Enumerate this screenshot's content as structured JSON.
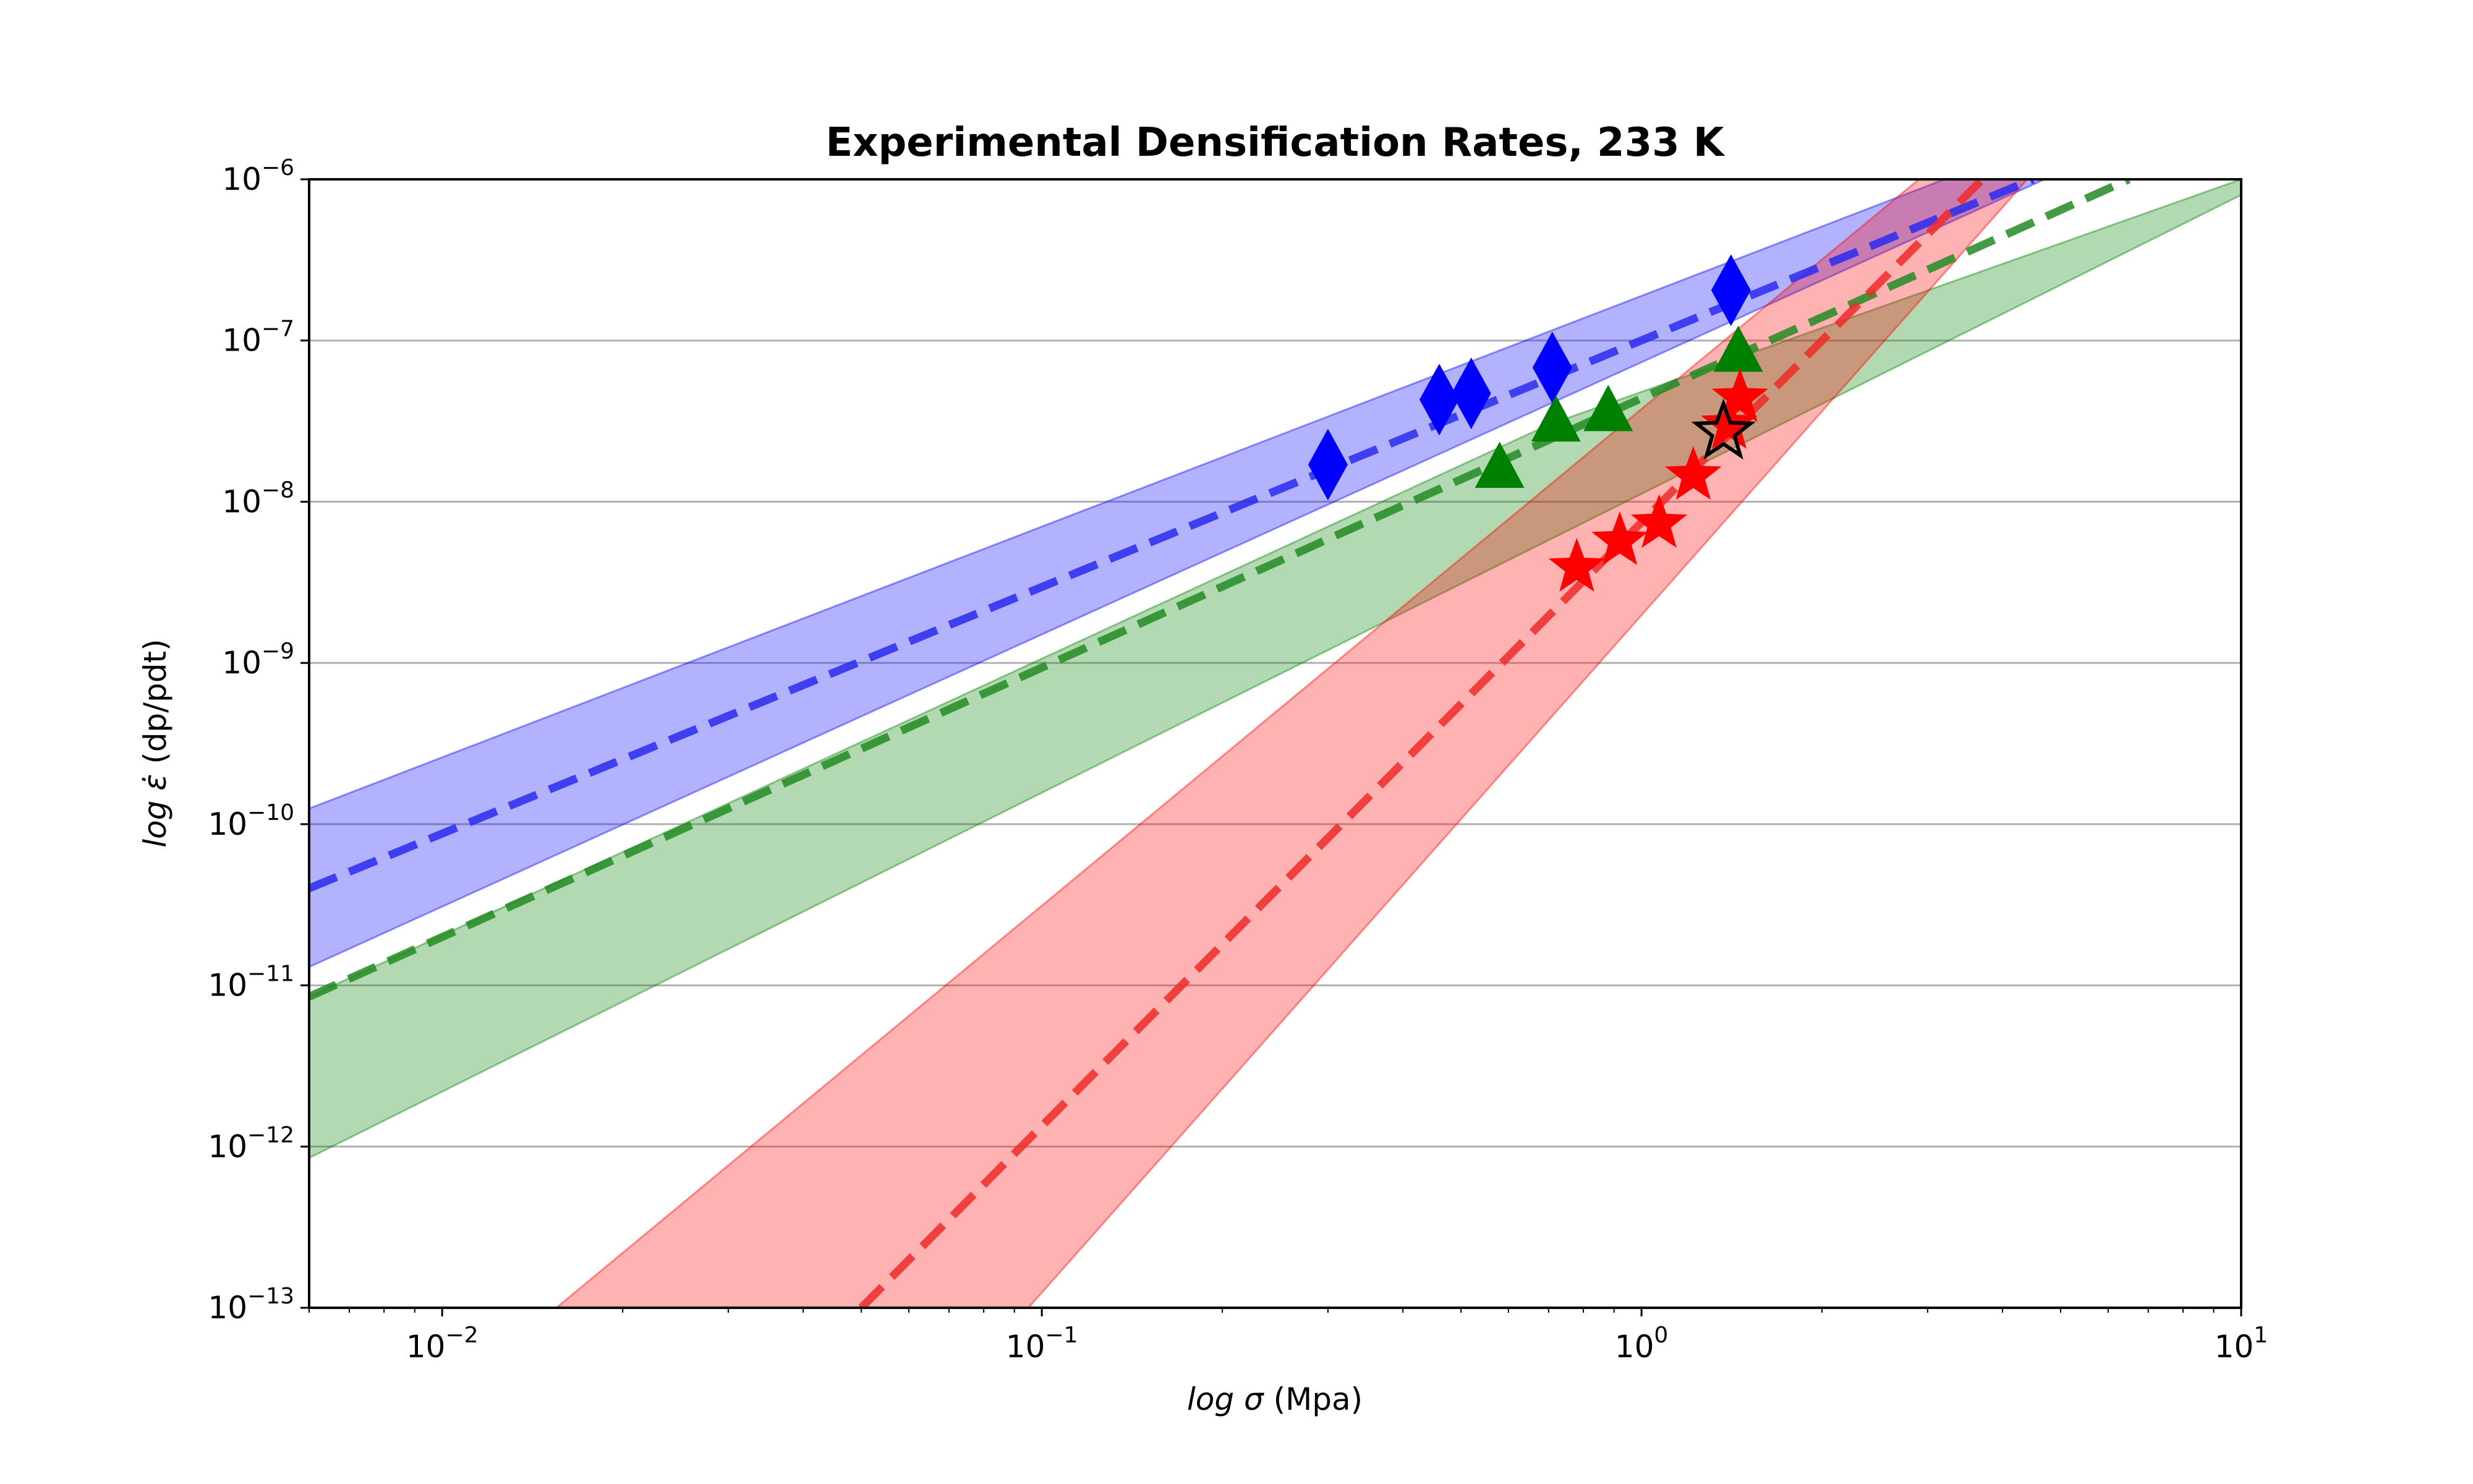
{
  "chart_data": {
    "type": "scatter",
    "title": "Experimental Densification Rates, 233 K",
    "xlabel": {
      "prefix": "log ",
      "symbol": "σ",
      "suffix": " (Mpa)"
    },
    "ylabel": {
      "prefix": "log ",
      "symbol": "ε̇",
      "suffix": "  (dp/pdt)"
    },
    "xscale": "log",
    "yscale": "log",
    "xlim": [
      0.006,
      10
    ],
    "ylim": [
      1e-13,
      1e-06
    ],
    "x_ticks": [
      {
        "base": "10",
        "exp": "−2",
        "value": 0.01
      },
      {
        "base": "10",
        "exp": "−1",
        "value": 0.1
      },
      {
        "base": "10",
        "exp": "0",
        "value": 1
      },
      {
        "base": "10",
        "exp": "1",
        "value": 10
      }
    ],
    "y_ticks": [
      {
        "base": "10",
        "exp": "−13",
        "value": 1e-13
      },
      {
        "base": "10",
        "exp": "−12",
        "value": 1e-12
      },
      {
        "base": "10",
        "exp": "−11",
        "value": 1e-11
      },
      {
        "base": "10",
        "exp": "−10",
        "value": 1e-10
      },
      {
        "base": "10",
        "exp": "−9",
        "value": 1e-09
      },
      {
        "base": "10",
        "exp": "−8",
        "value": 1e-08
      },
      {
        "base": "10",
        "exp": "−7",
        "value": 1e-07
      },
      {
        "base": "10",
        "exp": "−6",
        "value": 1e-06
      }
    ],
    "grid": "horizontal",
    "series": [
      {
        "color": "#0000ff",
        "marker": "diamond",
        "line_color": "#2a2af0",
        "band_color": "#0000ff",
        "fit": {
          "x": [
            0.006,
            4.5
          ],
          "y": [
            4e-11,
            1e-06
          ]
        },
        "band_upper": {
          "x": [
            0.006,
            3.2
          ],
          "y": [
            1.25e-10,
            1e-06
          ]
        },
        "band_lower": {
          "x": [
            0.006,
            4.7
          ],
          "y": [
            1.3e-11,
            1e-06
          ]
        },
        "points": {
          "x": [
            0.3,
            0.46,
            0.52,
            0.71,
            1.41
          ],
          "y": [
            1.7e-08,
            4.3e-08,
            4.7e-08,
            6.8e-08,
            2.05e-07
          ]
        }
      },
      {
        "color": "#008000",
        "marker": "triangle",
        "line_color": "#228b22",
        "band_color": "#008000",
        "fit": {
          "x": [
            0.006,
            6.5
          ],
          "y": [
            8.5e-12,
            1e-06
          ]
        },
        "band_upper": {
          "x": [
            0.006,
            0.7,
            10
          ],
          "y": [
            8.5e-12,
            3e-08,
            1e-06
          ]
        },
        "band_lower": {
          "x": [
            0.006,
            10
          ],
          "y": [
            8.5e-13,
            8e-07
          ]
        },
        "points": {
          "x": [
            0.58,
            0.72,
            0.88,
            1.45
          ],
          "y": [
            1.6e-08,
            3.1e-08,
            3.6e-08,
            8.4e-08
          ]
        }
      },
      {
        "color": "#ff0000",
        "marker": "star",
        "line_color": "#ee2a2a",
        "band_color": "#ff0000",
        "fit": {
          "x": [
            0.05,
            3.7
          ],
          "y": [
            1e-13,
            1e-06
          ]
        },
        "band_upper": {
          "x": [
            0.0155,
            2.9
          ],
          "y": [
            1e-13,
            1e-06
          ]
        },
        "band_lower": {
          "x": [
            0.095,
            4.4
          ],
          "y": [
            1e-13,
            1e-06
          ]
        },
        "points": {
          "x": [
            0.78,
            0.92,
            1.07,
            1.22,
            1.4,
            1.46
          ],
          "y": [
            3.9e-09,
            5.7e-09,
            7.3e-09,
            1.45e-08,
            3e-08,
            4.4e-08
          ]
        }
      },
      {
        "color": "#000000",
        "marker": "star-outline",
        "points": {
          "x": [
            1.37
          ],
          "y": [
            2.7e-08
          ]
        }
      }
    ]
  }
}
